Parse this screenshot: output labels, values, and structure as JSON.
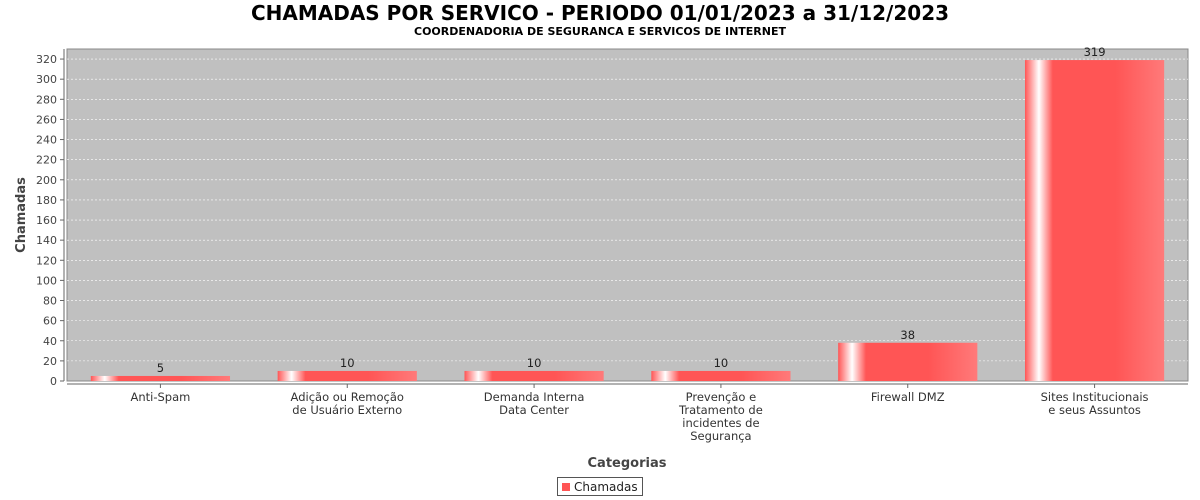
{
  "chart_data": {
    "type": "bar",
    "title": "CHAMADAS POR SERVICO - PERIODO 01/01/2023 a 31/12/2023",
    "subtitle": "COORDENADORIA DE SEGURANCA E SERVICOS DE INTERNET",
    "xlabel": "Categorias",
    "ylabel": "Chamadas",
    "ylim": [
      0,
      330
    ],
    "yticks": [
      0,
      20,
      40,
      60,
      80,
      100,
      120,
      140,
      160,
      180,
      200,
      220,
      240,
      260,
      280,
      300,
      320
    ],
    "grid": true,
    "legend_position": "bottom",
    "categories": [
      "Anti-Spam",
      "Adição ou Remoção de Usuário Externo",
      "Demanda Interna Data Center",
      "Prevenção e Tratamento de incidentes de Segurança",
      "Firewall DMZ",
      "Sites Institucionais e seus Assuntos"
    ],
    "category_lines": [
      [
        "Anti-Spam"
      ],
      [
        "Adição ou Remoção",
        "de Usuário Externo"
      ],
      [
        "Demanda Interna",
        "Data Center"
      ],
      [
        "Prevenção e",
        "Tratamento de",
        "incidentes de",
        "Segurança"
      ],
      [
        "Firewall DMZ"
      ],
      [
        "Sites Institucionais",
        "e seus Assuntos"
      ]
    ],
    "series": [
      {
        "name": "Chamadas",
        "values": [
          5,
          10,
          10,
          10,
          38,
          319
        ],
        "color": "#ff5555"
      }
    ],
    "plot_background": "#c0c0c0"
  }
}
